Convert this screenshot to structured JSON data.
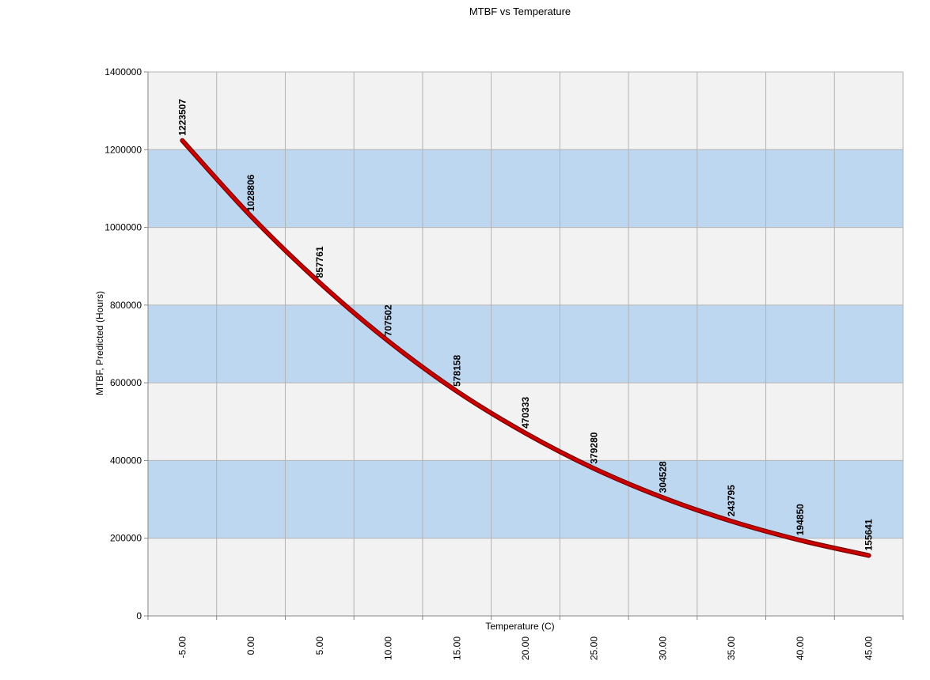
{
  "chart_data": {
    "type": "line",
    "title": "MTBF vs Temperature",
    "xlabel": "Temperature (C)",
    "ylabel": "MTBF, Predicted (Hours)",
    "categories": [
      "-5.00",
      "0.00",
      "5.00",
      "10.00",
      "15.00",
      "20.00",
      "25.00",
      "30.00",
      "35.00",
      "40.00",
      "45.00"
    ],
    "x": [
      -5,
      0,
      5,
      10,
      15,
      20,
      25,
      30,
      35,
      40,
      45
    ],
    "y_ticks": [
      "0",
      "200000",
      "400000",
      "600000",
      "800000",
      "1000000",
      "1200000",
      "1400000"
    ],
    "ylim": [
      0,
      1400000
    ],
    "grid": true,
    "legend": "none",
    "series": [
      {
        "values": [
          1223507,
          1028806,
          857761,
          707502,
          578158,
          470333,
          379280,
          304528,
          243795,
          194850,
          155641
        ],
        "labels": [
          "1223507",
          "1028806",
          "857761",
          "707502",
          "578158",
          "470333",
          "379280",
          "304528",
          "243795",
          "194850",
          "155641"
        ],
        "color": "#cc0000"
      }
    ],
    "colors": {
      "band_light": "#f2f2f2",
      "band_blue": "#bdd7f1",
      "grid": "#b4b4b4",
      "line": "#cc0000",
      "line_edge": "#7a0000",
      "text": "#000000"
    }
  }
}
